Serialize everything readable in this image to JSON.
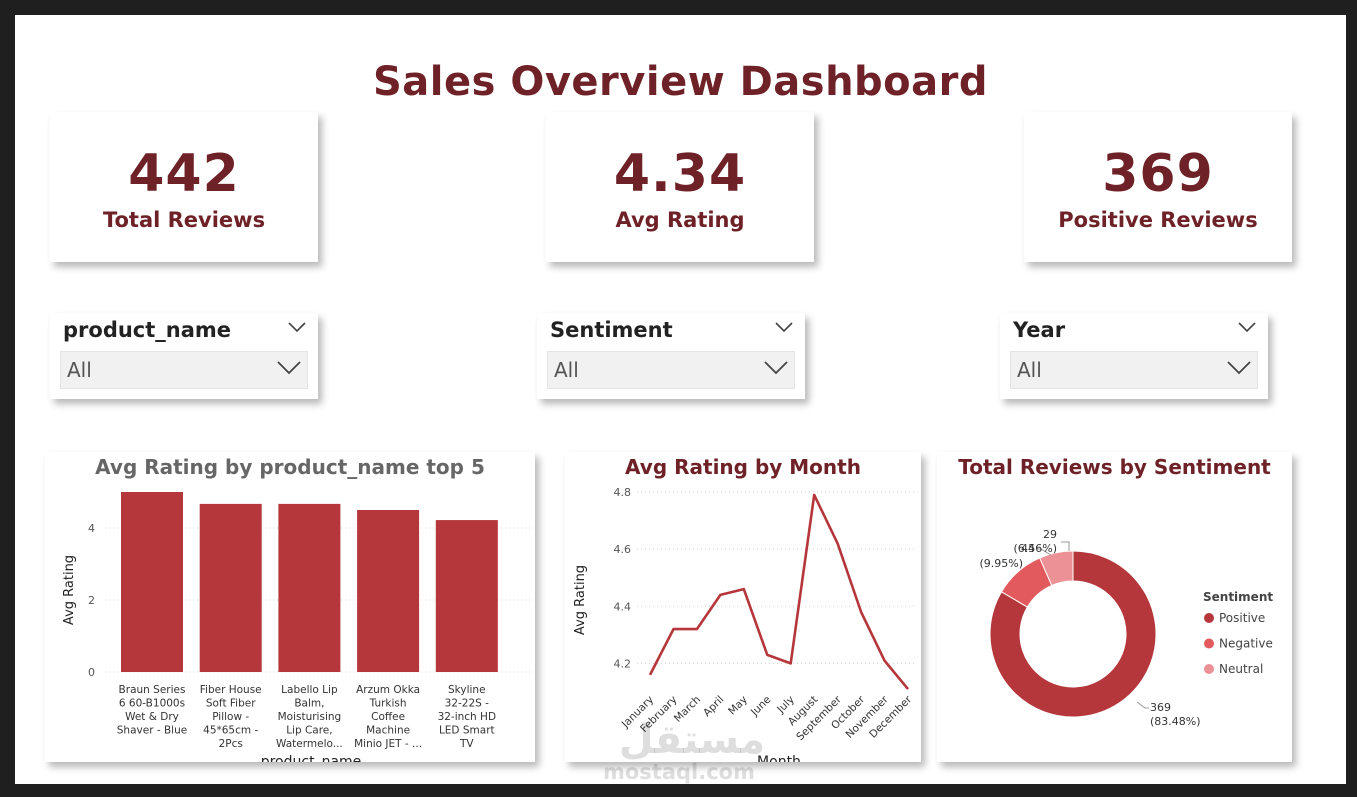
{
  "dashboard": {
    "title": "Sales Overview Dashboard"
  },
  "kpis": [
    {
      "value": "442",
      "label": "Total Reviews"
    },
    {
      "value": "4.34",
      "label": "Avg Rating"
    },
    {
      "value": "369",
      "label": "Positive Reviews"
    }
  ],
  "slicers": [
    {
      "title": "product_name",
      "value": "All"
    },
    {
      "title": "Sentiment",
      "value": "All"
    },
    {
      "title": "Year",
      "value": "All"
    }
  ],
  "colors": {
    "primary": "#b5373c",
    "negative": "#e25a5e",
    "neutral": "#ec9196",
    "title": "#6e2126"
  },
  "watermark": {
    "arabic": "مستقل",
    "latin": "mostaql.com"
  },
  "chart_data": [
    {
      "type": "bar",
      "title": "Avg Rating by product_name top 5",
      "xlabel": "product_name",
      "ylabel": "Avg Rating",
      "ylim": [
        0,
        5
      ],
      "yticks": [
        "0",
        "2",
        "4"
      ],
      "categories": [
        [
          "Braun Series",
          "6 60-B1000s",
          "Wet & Dry",
          "Shaver - Blue"
        ],
        [
          "Fiber House",
          "Soft Fiber",
          "Pillow -",
          "45*65cm -",
          "2Pcs"
        ],
        [
          "Labello Lip",
          "Balm,",
          "Moisturising",
          "Lip Care,",
          "Watermelo..."
        ],
        [
          "Arzum Okka",
          "Turkish",
          "Coffee",
          "Machine",
          "Minio JET - ..."
        ],
        [
          "Skyline",
          "32-22S -",
          "32-inch HD",
          "LED Smart",
          "TV"
        ]
      ],
      "values": [
        5.0,
        4.67,
        4.67,
        4.5,
        4.22
      ]
    },
    {
      "type": "line",
      "title": "Avg Rating by Month",
      "xlabel": "Month",
      "ylabel": "Avg Rating",
      "ylim": [
        4.1,
        4.8
      ],
      "yticks": [
        "4.2",
        "4.4",
        "4.6",
        "4.8"
      ],
      "categories": [
        "January",
        "February",
        "March",
        "April",
        "May",
        "June",
        "July",
        "August",
        "September",
        "October",
        "November",
        "December"
      ],
      "values": [
        4.16,
        4.32,
        4.32,
        4.44,
        4.46,
        4.23,
        4.2,
        4.79,
        4.62,
        4.38,
        4.21,
        4.11
      ]
    },
    {
      "type": "pie",
      "title": "Total Reviews by Sentiment",
      "legend_title": "Sentiment",
      "legend_position": "right",
      "categories": [
        "Positive",
        "Negative",
        "Neutral"
      ],
      "values": [
        369,
        44,
        29
      ],
      "percent_labels": [
        "(83.48%)",
        "(9.95%)",
        "(6.56%)"
      ]
    }
  ]
}
